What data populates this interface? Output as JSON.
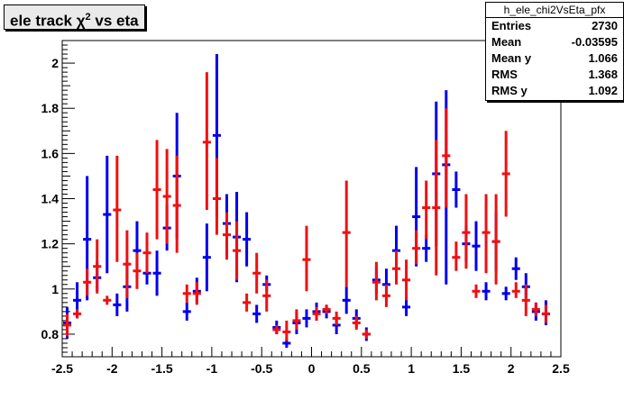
{
  "title": {
    "prefix": "ele track ",
    "chi": "χ",
    "sup": "2",
    "suffix": " vs eta"
  },
  "stats": {
    "name": "h_ele_chi2VsEta_pfx",
    "rows": [
      {
        "label": "Entries",
        "value": "2730"
      },
      {
        "label": "Mean",
        "value": "-0.03595"
      },
      {
        "label": "Mean y",
        "value": "1.066"
      },
      {
        "label": "RMS",
        "value": "1.368"
      },
      {
        "label": "RMS y",
        "value": "1.092"
      }
    ]
  },
  "colors": {
    "blue": "#0000ee",
    "red": "#ee1111",
    "frame": "#000000"
  },
  "chart_data": {
    "type": "scatter",
    "xlim": [
      -2.5,
      2.5
    ],
    "ylim": [
      0.7,
      2.1
    ],
    "xticks": [
      -2.5,
      -2,
      -1.5,
      -1,
      -0.5,
      0,
      0.5,
      1,
      1.5,
      2,
      2.5
    ],
    "xtick_labels": [
      "-2.5",
      "-2",
      "-1.5",
      "-1",
      "-0.5",
      "0",
      "0.5",
      "1",
      "1.5",
      "2",
      "2.5"
    ],
    "yticks": [
      0.8,
      1,
      1.2,
      1.4,
      1.6,
      1.8,
      2
    ],
    "ytick_labels": [
      "0.8",
      "1",
      "1.2",
      "1.4",
      "1.6",
      "1.8",
      "2"
    ],
    "bin_width": 0.1,
    "series": [
      {
        "color": "blue",
        "points": [
          {
            "x": -2.45,
            "y": 0.85,
            "lo": 0.78,
            "hi": 0.92
          },
          {
            "x": -2.35,
            "y": 0.95,
            "lo": 0.87,
            "hi": 1.03
          },
          {
            "x": -2.25,
            "y": 1.22,
            "lo": 0.95,
            "hi": 1.5
          },
          {
            "x": -2.15,
            "y": 1.05,
            "lo": 0.99,
            "hi": 1.12
          },
          {
            "x": -2.05,
            "y": 1.33,
            "lo": 1.07,
            "hi": 1.59
          },
          {
            "x": -1.95,
            "y": 0.93,
            "lo": 0.88,
            "hi": 0.98
          },
          {
            "x": -1.85,
            "y": 1.01,
            "lo": 0.9,
            "hi": 1.12
          },
          {
            "x": -1.75,
            "y": 1.17,
            "lo": 1.05,
            "hi": 1.3
          },
          {
            "x": -1.65,
            "y": 1.07,
            "lo": 1.02,
            "hi": 1.13
          },
          {
            "x": -1.55,
            "y": 1.07,
            "lo": 0.97,
            "hi": 1.17
          },
          {
            "x": -1.45,
            "y": 1.27,
            "lo": 1.17,
            "hi": 1.37
          },
          {
            "x": -1.35,
            "y": 1.5,
            "lo": 1.22,
            "hi": 1.78
          },
          {
            "x": -1.25,
            "y": 0.9,
            "lo": 0.86,
            "hi": 0.94
          },
          {
            "x": -1.15,
            "y": 0.99,
            "lo": 0.94,
            "hi": 1.05
          },
          {
            "x": -1.05,
            "y": 1.14,
            "lo": 0.99,
            "hi": 1.29
          },
          {
            "x": -0.95,
            "y": 1.68,
            "lo": 1.32,
            "hi": 2.04
          },
          {
            "x": -0.85,
            "y": 1.29,
            "lo": 1.16,
            "hi": 1.42
          },
          {
            "x": -0.75,
            "y": 1.23,
            "lo": 1.03,
            "hi": 1.43
          },
          {
            "x": -0.65,
            "y": 1.22,
            "lo": 1.1,
            "hi": 1.34
          },
          {
            "x": -0.55,
            "y": 0.89,
            "lo": 0.85,
            "hi": 0.93
          },
          {
            "x": -0.45,
            "y": 1.02,
            "lo": 0.99,
            "hi": 1.06
          },
          {
            "x": -0.35,
            "y": 0.83,
            "lo": 0.8,
            "hi": 0.86
          },
          {
            "x": -0.25,
            "y": 0.76,
            "lo": 0.74,
            "hi": 0.78
          },
          {
            "x": -0.15,
            "y": 0.85,
            "lo": 0.8,
            "hi": 0.9
          },
          {
            "x": -0.05,
            "y": 0.87,
            "lo": 0.83,
            "hi": 0.91
          },
          {
            "x": 0.05,
            "y": 0.9,
            "lo": 0.86,
            "hi": 0.94
          },
          {
            "x": 0.15,
            "y": 0.9,
            "lo": 0.87,
            "hi": 0.93
          },
          {
            "x": 0.25,
            "y": 0.84,
            "lo": 0.8,
            "hi": 0.88
          },
          {
            "x": 0.35,
            "y": 0.95,
            "lo": 0.89,
            "hi": 1.01
          },
          {
            "x": 0.45,
            "y": 0.87,
            "lo": 0.83,
            "hi": 0.91
          },
          {
            "x": 0.55,
            "y": 0.8,
            "lo": 0.77,
            "hi": 0.83
          },
          {
            "x": 0.65,
            "y": 1.04,
            "lo": 0.98,
            "hi": 1.1
          },
          {
            "x": 0.75,
            "y": 1.02,
            "lo": 0.95,
            "hi": 1.09
          },
          {
            "x": 0.85,
            "y": 1.17,
            "lo": 1.06,
            "hi": 1.28
          },
          {
            "x": 0.95,
            "y": 0.92,
            "lo": 0.88,
            "hi": 0.96
          },
          {
            "x": 1.05,
            "y": 1.32,
            "lo": 1.1,
            "hi": 1.54
          },
          {
            "x": 1.15,
            "y": 1.18,
            "lo": 1.12,
            "hi": 1.24
          },
          {
            "x": 1.25,
            "y": 1.51,
            "lo": 1.19,
            "hi": 1.83
          },
          {
            "x": 1.35,
            "y": 1.55,
            "lo": 1.02,
            "hi": 1.88
          },
          {
            "x": 1.45,
            "y": 1.44,
            "lo": 1.36,
            "hi": 1.52
          },
          {
            "x": 1.55,
            "y": 1.2,
            "lo": 1.12,
            "hi": 1.28
          },
          {
            "x": 1.65,
            "y": 1.19,
            "lo": 1.08,
            "hi": 1.3
          },
          {
            "x": 1.75,
            "y": 0.99,
            "lo": 0.95,
            "hi": 1.03
          },
          {
            "x": 1.85,
            "y": 1.21,
            "lo": 1.08,
            "hi": 1.34
          },
          {
            "x": 1.95,
            "y": 0.98,
            "lo": 0.95,
            "hi": 1.01
          },
          {
            "x": 2.05,
            "y": 1.09,
            "lo": 1.04,
            "hi": 1.14
          },
          {
            "x": 2.15,
            "y": 1.01,
            "lo": 0.96,
            "hi": 1.07
          },
          {
            "x": 2.25,
            "y": 0.9,
            "lo": 0.86,
            "hi": 0.94
          },
          {
            "x": 2.35,
            "y": 0.89,
            "lo": 0.84,
            "hi": 0.95
          }
        ]
      },
      {
        "color": "red",
        "points": [
          {
            "x": -2.45,
            "y": 0.84,
            "lo": 0.79,
            "hi": 0.89
          },
          {
            "x": -2.35,
            "y": 0.89,
            "lo": 0.87,
            "hi": 0.91
          },
          {
            "x": -2.25,
            "y": 1.03,
            "lo": 0.97,
            "hi": 1.09
          },
          {
            "x": -2.15,
            "y": 1.1,
            "lo": 0.98,
            "hi": 1.22
          },
          {
            "x": -2.05,
            "y": 0.95,
            "lo": 0.93,
            "hi": 0.97
          },
          {
            "x": -1.95,
            "y": 1.35,
            "lo": 1.12,
            "hi": 1.59
          },
          {
            "x": -1.85,
            "y": 1.11,
            "lo": 0.96,
            "hi": 1.26
          },
          {
            "x": -1.75,
            "y": 1.08,
            "lo": 1.0,
            "hi": 1.16
          },
          {
            "x": -1.65,
            "y": 1.16,
            "lo": 1.07,
            "hi": 1.25
          },
          {
            "x": -1.55,
            "y": 1.44,
            "lo": 1.22,
            "hi": 1.66
          },
          {
            "x": -1.45,
            "y": 1.41,
            "lo": 1.2,
            "hi": 1.62
          },
          {
            "x": -1.35,
            "y": 1.37,
            "lo": 1.16,
            "hi": 1.59
          },
          {
            "x": -1.25,
            "y": 0.98,
            "lo": 0.94,
            "hi": 1.02
          },
          {
            "x": -1.15,
            "y": 0.98,
            "lo": 0.93,
            "hi": 1.03
          },
          {
            "x": -1.05,
            "y": 1.65,
            "lo": 1.35,
            "hi": 1.96
          },
          {
            "x": -0.95,
            "y": 1.4,
            "lo": 1.24,
            "hi": 1.58
          },
          {
            "x": -0.85,
            "y": 1.24,
            "lo": 1.13,
            "hi": 1.34
          },
          {
            "x": -0.75,
            "y": 1.17,
            "lo": 1.04,
            "hi": 1.3
          },
          {
            "x": -0.65,
            "y": 0.94,
            "lo": 0.9,
            "hi": 0.98
          },
          {
            "x": -0.55,
            "y": 1.07,
            "lo": 0.98,
            "hi": 1.16
          },
          {
            "x": -0.45,
            "y": 0.97,
            "lo": 0.9,
            "hi": 1.04
          },
          {
            "x": -0.35,
            "y": 0.82,
            "lo": 0.8,
            "hi": 0.84
          },
          {
            "x": -0.25,
            "y": 0.81,
            "lo": 0.77,
            "hi": 0.86
          },
          {
            "x": -0.15,
            "y": 0.86,
            "lo": 0.82,
            "hi": 0.91
          },
          {
            "x": -0.05,
            "y": 1.13,
            "lo": 0.99,
            "hi": 1.28
          },
          {
            "x": 0.05,
            "y": 0.89,
            "lo": 0.86,
            "hi": 0.92
          },
          {
            "x": 0.15,
            "y": 0.91,
            "lo": 0.89,
            "hi": 0.93
          },
          {
            "x": 0.25,
            "y": 0.87,
            "lo": 0.84,
            "hi": 0.9
          },
          {
            "x": 0.35,
            "y": 1.25,
            "lo": 1.01,
            "hi": 1.48
          },
          {
            "x": 0.45,
            "y": 0.85,
            "lo": 0.82,
            "hi": 0.88
          },
          {
            "x": 0.55,
            "y": 0.8,
            "lo": 0.78,
            "hi": 0.82
          },
          {
            "x": 0.65,
            "y": 1.03,
            "lo": 0.95,
            "hi": 1.12
          },
          {
            "x": 0.75,
            "y": 0.97,
            "lo": 0.92,
            "hi": 1.02
          },
          {
            "x": 0.85,
            "y": 1.09,
            "lo": 1.02,
            "hi": 1.17
          },
          {
            "x": 0.95,
            "y": 1.04,
            "lo": 0.95,
            "hi": 1.13
          },
          {
            "x": 1.05,
            "y": 1.18,
            "lo": 1.11,
            "hi": 1.26
          },
          {
            "x": 1.15,
            "y": 1.36,
            "lo": 1.22,
            "hi": 1.48
          },
          {
            "x": 1.25,
            "y": 1.36,
            "lo": 1.06,
            "hi": 1.66
          },
          {
            "x": 1.35,
            "y": 1.59,
            "lo": 1.36,
            "hi": 1.8
          },
          {
            "x": 1.45,
            "y": 1.14,
            "lo": 1.08,
            "hi": 1.21
          },
          {
            "x": 1.55,
            "y": 1.25,
            "lo": 1.09,
            "hi": 1.42
          },
          {
            "x": 1.65,
            "y": 0.99,
            "lo": 0.96,
            "hi": 1.02
          },
          {
            "x": 1.75,
            "y": 1.25,
            "lo": 1.07,
            "hi": 1.42
          },
          {
            "x": 1.85,
            "y": 1.21,
            "lo": 1.02,
            "hi": 1.42
          },
          {
            "x": 1.95,
            "y": 1.51,
            "lo": 1.32,
            "hi": 1.7
          },
          {
            "x": 2.05,
            "y": 0.99,
            "lo": 0.96,
            "hi": 1.03
          },
          {
            "x": 2.15,
            "y": 0.95,
            "lo": 0.88,
            "hi": 1.02
          },
          {
            "x": 2.25,
            "y": 0.91,
            "lo": 0.88,
            "hi": 0.94
          },
          {
            "x": 2.35,
            "y": 0.89,
            "lo": 0.85,
            "hi": 0.93
          }
        ]
      }
    ]
  }
}
